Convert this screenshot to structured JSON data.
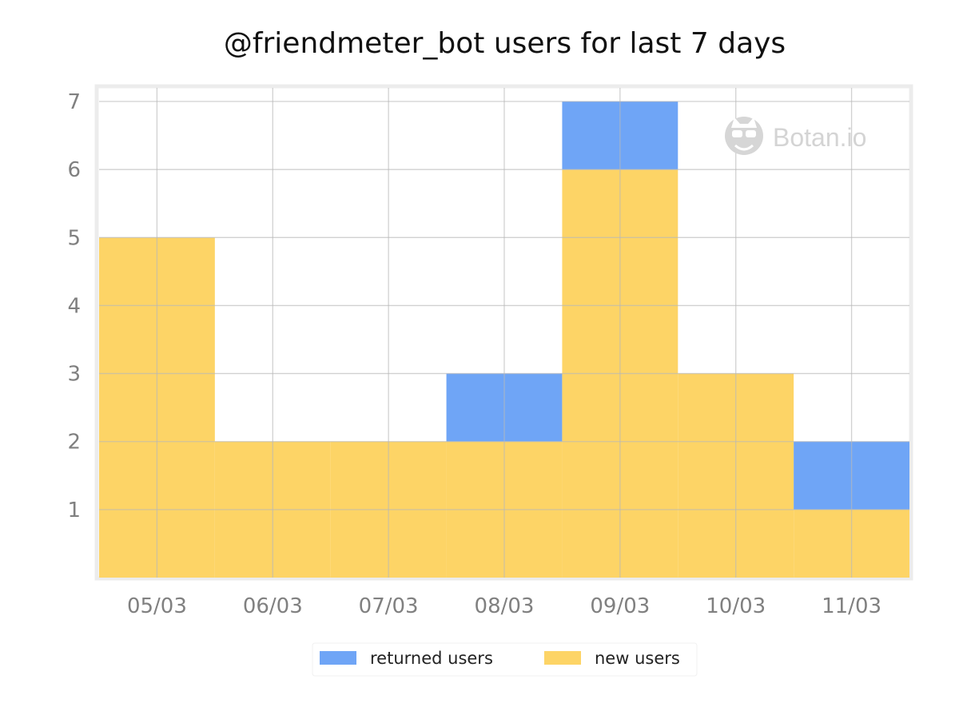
{
  "chart_data": {
    "type": "bar",
    "stacked": true,
    "title": "@friendmeter_bot users for last 7 days",
    "xlabel": "",
    "ylabel": "",
    "categories": [
      "05/03",
      "06/03",
      "07/03",
      "08/03",
      "09/03",
      "10/03",
      "11/03"
    ],
    "series": [
      {
        "name": "new users",
        "values": [
          5,
          2,
          2,
          2,
          6,
          3,
          1
        ],
        "color": "#fdd466"
      },
      {
        "name": "returned users",
        "values": [
          0,
          0,
          0,
          1,
          1,
          0,
          1
        ],
        "color": "#6fa5f6"
      }
    ],
    "ylim": [
      0,
      7.2
    ],
    "yticks": [
      1,
      2,
      3,
      4,
      5,
      6,
      7
    ],
    "grid": true,
    "legend": {
      "placement": "bottom-center",
      "order": [
        "returned users",
        "new users"
      ]
    },
    "watermark": {
      "text": "Botan.io",
      "icon": "botan-logo-icon"
    }
  }
}
